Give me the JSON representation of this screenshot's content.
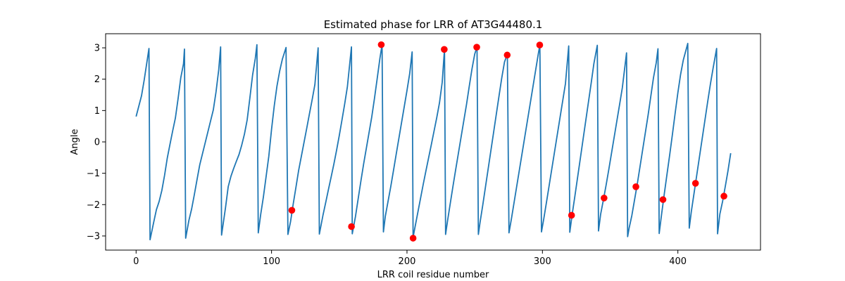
{
  "chart_data": {
    "type": "line",
    "title": "Estimated phase for LRR of AT3G44480.1",
    "xlabel": "LRR coil residue number",
    "ylabel": "Angle",
    "xlim": [
      -22.5,
      461
    ],
    "ylim": [
      -3.45,
      3.45
    ],
    "xticks": [
      0,
      100,
      200,
      300,
      400
    ],
    "yticks": [
      -3,
      -2,
      -1,
      0,
      1,
      2,
      3
    ],
    "grid": false,
    "legend": "none",
    "colors": {
      "line": "#1f77b4",
      "markers": "#ff0000"
    },
    "series": [
      {
        "type": "line",
        "points": [
          [
            0,
            0.81
          ],
          [
            2,
            1.14
          ],
          [
            4,
            1.47
          ],
          [
            6,
            1.98
          ],
          [
            8,
            2.55
          ],
          [
            9.5,
            2.98
          ],
          [
            10.3,
            -3.12
          ],
          [
            13,
            -2.56
          ],
          [
            15,
            -2.16
          ],
          [
            17,
            -1.9
          ],
          [
            19,
            -1.55
          ],
          [
            21,
            -1.07
          ],
          [
            23,
            -0.52
          ],
          [
            25,
            -0.08
          ],
          [
            27,
            0.35
          ],
          [
            29,
            0.76
          ],
          [
            31,
            1.38
          ],
          [
            33,
            2.05
          ],
          [
            35,
            2.49
          ],
          [
            35.7,
            2.96
          ],
          [
            36.6,
            -3.07
          ],
          [
            39,
            -2.5
          ],
          [
            41,
            -2.14
          ],
          [
            43,
            -1.68
          ],
          [
            45,
            -1.2
          ],
          [
            47,
            -0.73
          ],
          [
            49,
            -0.38
          ],
          [
            51,
            -0.03
          ],
          [
            53,
            0.32
          ],
          [
            55,
            0.67
          ],
          [
            57,
            1.02
          ],
          [
            59,
            1.59
          ],
          [
            61,
            2.3
          ],
          [
            62.4,
            3.03
          ],
          [
            63.1,
            -2.97
          ],
          [
            66,
            -2.1
          ],
          [
            68,
            -1.43
          ],
          [
            70,
            -1.1
          ],
          [
            72,
            -0.85
          ],
          [
            74,
            -0.62
          ],
          [
            76,
            -0.4
          ],
          [
            78,
            -0.1
          ],
          [
            80,
            0.25
          ],
          [
            82,
            0.7
          ],
          [
            84,
            1.4
          ],
          [
            86,
            2.13
          ],
          [
            88,
            2.66
          ],
          [
            89.2,
            3.1
          ],
          [
            90.2,
            -2.9
          ],
          [
            92,
            -2.31
          ],
          [
            94,
            -1.75
          ],
          [
            96,
            -1.1
          ],
          [
            98,
            -0.45
          ],
          [
            100,
            0.4
          ],
          [
            102,
            1.15
          ],
          [
            104,
            1.78
          ],
          [
            106,
            2.26
          ],
          [
            108,
            2.64
          ],
          [
            110.7,
            3.01
          ],
          [
            112.1,
            -2.95
          ],
          [
            114,
            -2.55
          ],
          [
            116,
            -1.98
          ],
          [
            118,
            -1.45
          ],
          [
            120,
            -0.91
          ],
          [
            122,
            -0.46
          ],
          [
            124,
            -0.01
          ],
          [
            126,
            0.44
          ],
          [
            128,
            0.9
          ],
          [
            130,
            1.35
          ],
          [
            132,
            1.83
          ],
          [
            134.4,
            3.0
          ],
          [
            135.3,
            -2.94
          ],
          [
            138,
            -2.33
          ],
          [
            140,
            -1.93
          ],
          [
            142,
            -1.52
          ],
          [
            144,
            -1.12
          ],
          [
            146,
            -0.71
          ],
          [
            148,
            -0.27
          ],
          [
            150,
            0.2
          ],
          [
            152,
            0.7
          ],
          [
            154,
            1.21
          ],
          [
            156,
            1.76
          ],
          [
            159,
            3.03
          ],
          [
            159.6,
            -2.93
          ],
          [
            162,
            -2.37
          ],
          [
            164,
            -1.8
          ],
          [
            166,
            -1.24
          ],
          [
            168,
            -0.7
          ],
          [
            170,
            -0.2
          ],
          [
            172,
            0.3
          ],
          [
            174,
            0.8
          ],
          [
            176,
            1.39
          ],
          [
            178,
            2.02
          ],
          [
            180,
            2.66
          ],
          [
            181.6,
            3.1
          ],
          [
            182.6,
            -2.87
          ],
          [
            184,
            -2.37
          ],
          [
            186,
            -1.9
          ],
          [
            188,
            -1.43
          ],
          [
            190,
            -0.92
          ],
          [
            192,
            -0.4
          ],
          [
            194,
            0.11
          ],
          [
            196,
            0.62
          ],
          [
            198,
            1.13
          ],
          [
            200,
            1.64
          ],
          [
            202,
            2.18
          ],
          [
            203.8,
            2.87
          ],
          [
            204.5,
            -3.04
          ],
          [
            206,
            -2.7
          ],
          [
            208,
            -2.25
          ],
          [
            210,
            -1.8
          ],
          [
            212,
            -1.35
          ],
          [
            214,
            -0.92
          ],
          [
            216,
            -0.5
          ],
          [
            218,
            -0.08
          ],
          [
            220,
            0.35
          ],
          [
            222,
            0.78
          ],
          [
            224,
            1.25
          ],
          [
            226,
            1.9
          ],
          [
            227.7,
            2.96
          ],
          [
            228.5,
            -2.95
          ],
          [
            230,
            -2.5
          ],
          [
            232,
            -1.95
          ],
          [
            234,
            -1.4
          ],
          [
            236,
            -0.87
          ],
          [
            238,
            -0.35
          ],
          [
            240,
            0.17
          ],
          [
            242,
            0.69
          ],
          [
            244,
            1.21
          ],
          [
            246,
            1.78
          ],
          [
            248,
            2.33
          ],
          [
            250,
            2.8
          ],
          [
            251.7,
            3.03
          ],
          [
            252.7,
            -2.95
          ],
          [
            254,
            -2.55
          ],
          [
            256,
            -2.0
          ],
          [
            258,
            -1.42
          ],
          [
            260,
            -0.84
          ],
          [
            262,
            -0.26
          ],
          [
            264,
            0.32
          ],
          [
            266,
            0.9
          ],
          [
            268,
            1.48
          ],
          [
            270,
            2.05
          ],
          [
            272,
            2.55
          ],
          [
            274.1,
            2.8
          ],
          [
            275.3,
            -2.9
          ],
          [
            277,
            -2.48
          ],
          [
            279,
            -1.95
          ],
          [
            281,
            -1.42
          ],
          [
            283,
            -0.89
          ],
          [
            285,
            -0.36
          ],
          [
            287,
            0.17
          ],
          [
            289,
            0.7
          ],
          [
            291,
            1.23
          ],
          [
            293,
            1.76
          ],
          [
            295,
            2.29
          ],
          [
            297,
            2.82
          ],
          [
            298.1,
            3.09
          ],
          [
            299.3,
            -2.87
          ],
          [
            301,
            -2.45
          ],
          [
            303,
            -1.92
          ],
          [
            305,
            -1.38
          ],
          [
            307,
            -0.84
          ],
          [
            309,
            -0.3
          ],
          [
            311,
            0.24
          ],
          [
            313,
            0.78
          ],
          [
            315,
            1.32
          ],
          [
            317,
            1.86
          ],
          [
            319.4,
            3.06
          ],
          [
            320.2,
            -2.88
          ],
          [
            322,
            -2.3
          ],
          [
            324,
            -1.72
          ],
          [
            326,
            -1.12
          ],
          [
            328,
            -0.52
          ],
          [
            330,
            0.08
          ],
          [
            332,
            0.68
          ],
          [
            334,
            1.28
          ],
          [
            336,
            1.88
          ],
          [
            338,
            2.5
          ],
          [
            340.5,
            3.08
          ],
          [
            341.4,
            -2.84
          ],
          [
            343,
            -2.3
          ],
          [
            345,
            -1.85
          ],
          [
            347,
            -1.38
          ],
          [
            349,
            -0.88
          ],
          [
            351,
            -0.36
          ],
          [
            353,
            0.16
          ],
          [
            355,
            0.68
          ],
          [
            357,
            1.2
          ],
          [
            359,
            1.73
          ],
          [
            362.1,
            2.84
          ],
          [
            362.9,
            -3.02
          ],
          [
            364,
            -2.75
          ],
          [
            366,
            -2.35
          ],
          [
            368,
            -1.85
          ],
          [
            370,
            -1.35
          ],
          [
            372,
            -0.8
          ],
          [
            374,
            -0.25
          ],
          [
            376,
            0.3
          ],
          [
            378,
            0.85
          ],
          [
            380,
            1.45
          ],
          [
            382,
            2.05
          ],
          [
            384,
            2.52
          ],
          [
            385.3,
            2.97
          ],
          [
            386.2,
            -2.92
          ],
          [
            388,
            -2.3
          ],
          [
            390,
            -1.65
          ],
          [
            392,
            -1.02
          ],
          [
            394,
            -0.4
          ],
          [
            396,
            0.25
          ],
          [
            398,
            0.92
          ],
          [
            400,
            1.57
          ],
          [
            402,
            2.15
          ],
          [
            404,
            2.61
          ],
          [
            407.3,
            3.14
          ],
          [
            408.4,
            -2.75
          ],
          [
            410,
            -2.2
          ],
          [
            412,
            -1.62
          ],
          [
            414,
            -1.04
          ],
          [
            416,
            -0.46
          ],
          [
            418,
            0.12
          ],
          [
            420,
            0.7
          ],
          [
            422,
            1.28
          ],
          [
            424,
            1.84
          ],
          [
            426,
            2.35
          ],
          [
            428.6,
            2.98
          ],
          [
            429.3,
            -2.93
          ],
          [
            431,
            -2.3
          ],
          [
            433,
            -1.9
          ],
          [
            435,
            -1.42
          ],
          [
            437,
            -0.92
          ],
          [
            439,
            -0.36
          ]
        ]
      },
      {
        "type": "scatter",
        "points": [
          [
            115,
            -2.18
          ],
          [
            159,
            -2.7
          ],
          [
            181,
            3.1
          ],
          [
            204.5,
            -3.07
          ],
          [
            227.5,
            2.95
          ],
          [
            251.5,
            3.02
          ],
          [
            274,
            2.77
          ],
          [
            298,
            3.09
          ],
          [
            321.5,
            -2.34
          ],
          [
            345.5,
            -1.79
          ],
          [
            369,
            -1.43
          ],
          [
            389,
            -1.84
          ],
          [
            413,
            -1.32
          ],
          [
            434,
            -1.73
          ]
        ]
      }
    ]
  }
}
